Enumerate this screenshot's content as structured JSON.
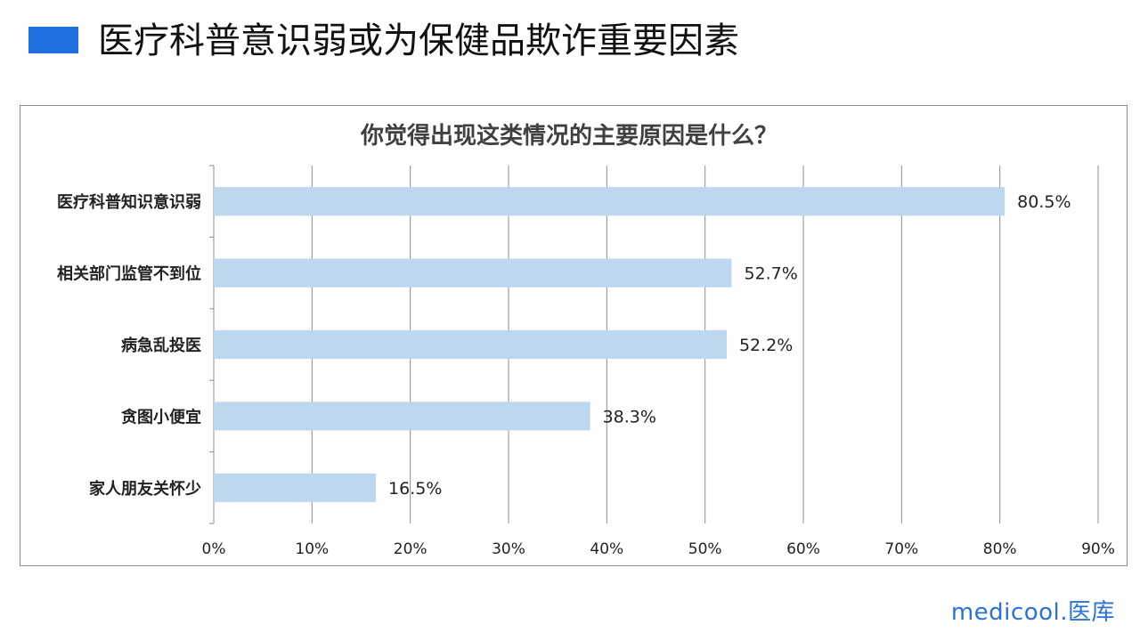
{
  "slide": {
    "title": "医疗科普意识弱或为保健品欺诈重要因素",
    "accent_color": "#1f6fe0"
  },
  "brand": {
    "logo_text": "medicool.医库",
    "color": "#2a72d6"
  },
  "chart_data": {
    "type": "bar",
    "orientation": "horizontal",
    "title": "你觉得出现这类情况的主要原因是什么？",
    "categories": [
      "医疗科普知识意识弱",
      "相关部门监管不到位",
      "病急乱投医",
      "贪图小便宜",
      "家人朋友关怀少"
    ],
    "values": [
      80.5,
      52.7,
      52.2,
      38.3,
      16.5
    ],
    "data_labels": [
      "80.5%",
      "52.7%",
      "52.2%",
      "38.3%",
      "16.5%"
    ],
    "xlim": [
      0,
      90
    ],
    "x_ticks": [
      0,
      10,
      20,
      30,
      40,
      50,
      60,
      70,
      80,
      90
    ],
    "x_tick_labels": [
      "0%",
      "10%",
      "20%",
      "30%",
      "40%",
      "50%",
      "60%",
      "70%",
      "80%",
      "90%"
    ],
    "xlabel": "",
    "ylabel": "",
    "grid": true,
    "legend": "none",
    "bar_color": "#bdd7ee",
    "gridline_color": "#8c8c8c"
  }
}
